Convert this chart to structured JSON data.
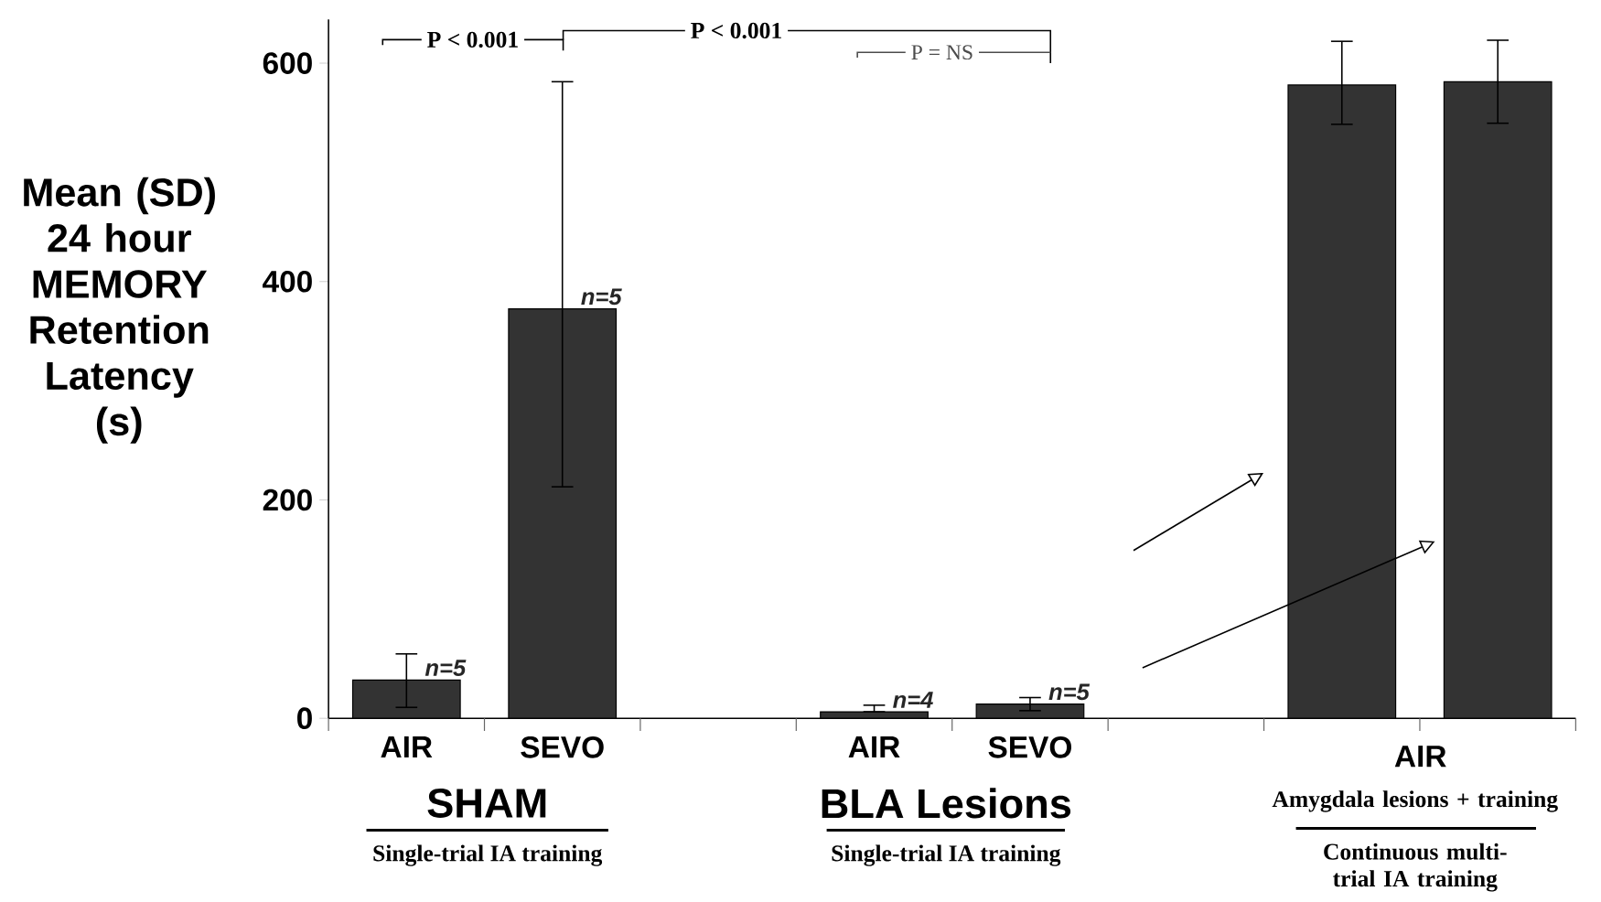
{
  "chart_data": {
    "type": "bar",
    "ylabel": "Mean (SD) 24 hour MEMORY Retention Latency (s)",
    "categories": [
      "AIR",
      "SEVO",
      null,
      "AIR",
      "SEVO",
      null,
      null,
      null
    ],
    "values": [
      35,
      375,
      null,
      6,
      13,
      null,
      580,
      583
    ],
    "errors": [
      [
        10,
        59
      ],
      [
        212,
        583
      ],
      null,
      [
        6,
        12
      ],
      [
        7,
        19
      ],
      null,
      [
        544,
        620
      ],
      [
        545,
        621
      ]
    ],
    "color": "#333333",
    "ylim": [
      0,
      640
    ],
    "yticks": [
      0,
      200,
      400,
      600
    ],
    "annotations": [
      "P < 0.001",
      "P < 0.001",
      "P = NS",
      "SHAM",
      "Single-trial IA training",
      "BLA Lesions",
      "Single-trial IA training",
      "AIR",
      "Amygdala lesions + training",
      "Continuous multi-trial IA training",
      "n=5",
      "n=5",
      "n=4",
      "n=5"
    ]
  }
}
